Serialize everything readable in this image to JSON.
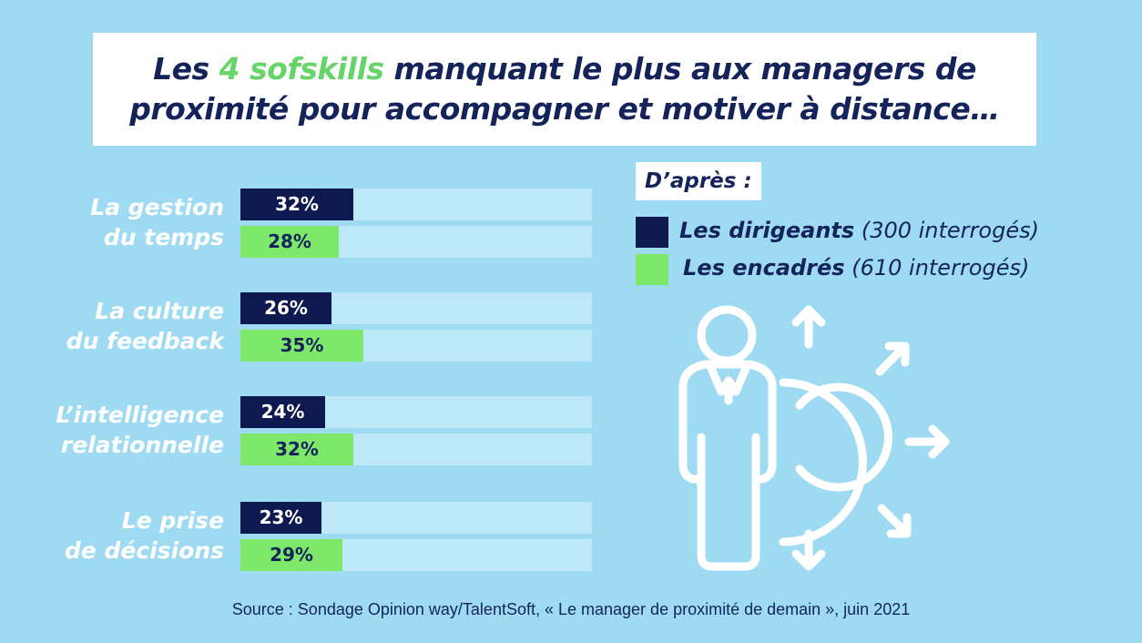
{
  "title": {
    "line1_pre": "Les ",
    "line1_highlight": "4 sofskills",
    "line1_post": " manquant le plus aux managers de",
    "line2": "proximité pour accompagner et motiver à distance…"
  },
  "legend": {
    "heading": "D’après :",
    "items": [
      {
        "name": "Les dirigeants",
        "note": "(300 interrogés)"
      },
      {
        "name": "Les encadrés",
        "note": "(610 interrogés)"
      }
    ]
  },
  "colors": {
    "dirigeants": "#0e1a4f",
    "encadres": "#7ee86b",
    "track": "#bde8f8",
    "background": "#9edbf3",
    "title_text": "#14235a",
    "title_highlight": "#67d46a"
  },
  "chart_data": {
    "type": "bar",
    "orientation": "horizontal",
    "categories": [
      [
        "La gestion",
        "du temps"
      ],
      [
        "La culture",
        "du feedback"
      ],
      [
        "L’intelligence",
        "relationnelle"
      ],
      [
        "Le prise",
        "de décisions"
      ]
    ],
    "series": [
      {
        "name": "Les dirigeants",
        "values": [
          32,
          26,
          24,
          23
        ],
        "labels": [
          "32%",
          "26%",
          "24%",
          "23%"
        ]
      },
      {
        "name": "Les encadrés",
        "values": [
          28,
          35,
          32,
          29
        ],
        "labels": [
          "28%",
          "35%",
          "32%",
          "29%"
        ]
      }
    ],
    "xlim": [
      0,
      100
    ],
    "grid": false,
    "legend_position": "right"
  },
  "icon": "businessman-target-arrows-icon",
  "source": "Source : Sondage Opinion way/TalentSoft, « Le manager de proximité de demain », juin 2021"
}
